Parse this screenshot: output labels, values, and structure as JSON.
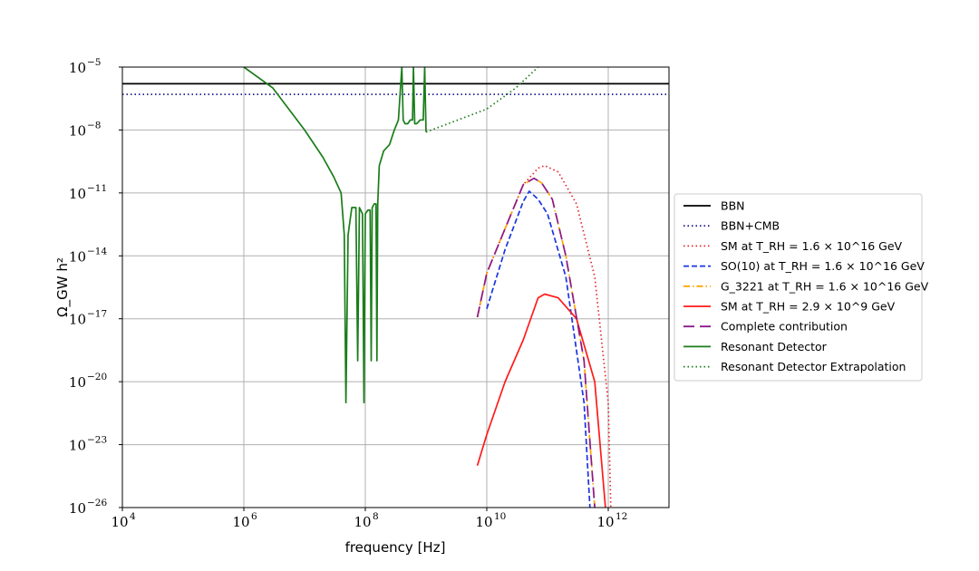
{
  "chart_data": {
    "type": "line",
    "xlabel": "frequency [Hz]",
    "ylabel": "Ω_GW h²",
    "x_scale": "log",
    "y_scale": "log",
    "xlim": [
      10000,
      10000000000000
    ],
    "ylim": [
      1e-26,
      1e-05
    ],
    "grid": true,
    "legend_position": "right-outside",
    "x_ticks": [
      {
        "base": "10",
        "exp": "4",
        "value": 10000
      },
      {
        "base": "10",
        "exp": "6",
        "value": 1000000
      },
      {
        "base": "10",
        "exp": "8",
        "value": 100000000
      },
      {
        "base": "10",
        "exp": "10",
        "value": 10000000000
      },
      {
        "base": "10",
        "exp": "12",
        "value": 1000000000000
      }
    ],
    "y_ticks": [
      {
        "base": "10",
        "exp": "−26",
        "value": 1e-26
      },
      {
        "base": "10",
        "exp": "−23",
        "value": 1e-23
      },
      {
        "base": "10",
        "exp": "−20",
        "value": 1e-20
      },
      {
        "base": "10",
        "exp": "−17",
        "value": 1e-17
      },
      {
        "base": "10",
        "exp": "−14",
        "value": 1e-14
      },
      {
        "base": "10",
        "exp": "−11",
        "value": 1e-11
      },
      {
        "base": "10",
        "exp": "−8",
        "value": 1e-08
      },
      {
        "base": "10",
        "exp": "−5",
        "value": 1e-05
      }
    ],
    "series": [
      {
        "name": "BBN",
        "color": "#000000",
        "style": "solid",
        "x": [
          10000,
          10000000000000
        ],
        "y": [
          1.6e-06,
          1.6e-06
        ]
      },
      {
        "name": "BBN+CMB",
        "color": "#1f1f8f",
        "style": "dotted",
        "x": [
          10000,
          10000000000000
        ],
        "y": [
          5e-07,
          5e-07
        ]
      },
      {
        "name": "SM at T_RH = 1.6 × 10^16 GeV",
        "color": "#e8262a",
        "style": "dotted",
        "x": [
          7000000000,
          10000000000,
          20000000000,
          40000000000,
          70000000000,
          90000000000,
          150000000000,
          300000000000,
          600000000000,
          1000000000000,
          1100000000000
        ],
        "y": [
          1.2e-17,
          1.5e-15,
          2e-13,
          2.5e-11,
          1.5e-10,
          2e-10,
          1e-10,
          3e-12,
          1e-15,
          1e-21,
          1e-26
        ]
      },
      {
        "name": "SO(10) at T_RH = 1.6 × 10^16 GeV",
        "color": "#1a35e0",
        "style": "dashed",
        "x": [
          10000000000,
          20000000000,
          40000000000,
          50000000000,
          70000000000,
          100000000000,
          200000000000,
          400000000000,
          500000000000
        ],
        "y": [
          3e-17,
          2e-14,
          4e-12,
          1.2e-11,
          5e-12,
          1e-12,
          1e-15,
          1e-21,
          1e-26
        ]
      },
      {
        "name": "G_3221 at T_RH = 1.6 × 10^16 GeV",
        "color": "#ffa500",
        "style": "dashdot",
        "x": [
          7000000000,
          10000000000,
          20000000000,
          40000000000,
          60000000000,
          80000000000,
          120000000000,
          200000000000,
          400000000000,
          600000000000
        ],
        "y": [
          1.2e-17,
          1.5e-15,
          2e-13,
          2.5e-11,
          5e-11,
          3e-11,
          5e-12,
          1e-14,
          1e-19,
          1e-26
        ]
      },
      {
        "name": "SM at T_RH = 2.9 × 10^9 GeV",
        "color": "#ff1a1a",
        "style": "solid",
        "x": [
          7000000000,
          10000000000,
          20000000000,
          40000000000,
          70000000000,
          90000000000,
          150000000000,
          300000000000,
          600000000000,
          900000000000
        ],
        "y": [
          1e-24,
          3e-23,
          1e-20,
          1e-18,
          1e-16,
          1.5e-16,
          1e-16,
          1e-17,
          1e-20,
          1e-26
        ]
      },
      {
        "name": "Complete contribution",
        "color": "#8b1a8b",
        "style": "longdash",
        "x": [
          7000000000,
          10000000000,
          20000000000,
          40000000000,
          60000000000,
          80000000000,
          120000000000,
          200000000000,
          400000000000,
          600000000000
        ],
        "y": [
          1.2e-17,
          1.5e-15,
          2e-13,
          2.5e-11,
          5e-11,
          3e-11,
          5e-12,
          1e-14,
          1e-19,
          1e-26
        ]
      },
      {
        "name": "Resonant Detector",
        "color": "#1a7d1a",
        "style": "solid",
        "x": [
          1000000,
          3000000,
          10000000,
          20000000,
          30000000,
          40000000,
          45000000,
          48000000,
          52000000,
          60000000,
          70000000,
          75000000,
          80000000,
          90000000,
          95000000,
          100000000,
          110000000,
          120000000,
          125000000,
          130000000,
          140000000,
          150000000,
          155000000,
          160000000,
          170000000,
          200000000,
          250000000,
          300000000,
          350000000,
          400000000,
          420000000,
          450000000,
          500000000,
          550000000,
          600000000,
          620000000,
          650000000,
          700000000,
          800000000,
          900000000,
          950000000,
          1000000000
        ],
        "y": [
          1e-05,
          1e-06,
          1e-08,
          5e-10,
          6e-11,
          1e-11,
          1e-13,
          1e-21,
          1e-13,
          2e-12,
          2e-12,
          1e-19,
          2e-12,
          1e-12,
          1e-21,
          1e-12,
          1.5e-12,
          1.5e-12,
          1e-19,
          2e-12,
          3e-12,
          3e-12,
          1e-19,
          3e-12,
          2e-10,
          1e-09,
          2e-09,
          1e-08,
          3e-08,
          1e-05,
          3e-08,
          2e-08,
          2e-08,
          3e-08,
          3e-08,
          1e-05,
          2e-08,
          2e-08,
          3e-08,
          3e-08,
          1e-05,
          8e-09
        ]
      },
      {
        "name": "Resonant Detector Extrapolation",
        "color": "#1a7d1a",
        "style": "dotted",
        "x": [
          1000000000,
          10000000000,
          30000000000,
          70000000000
        ],
        "y": [
          8e-09,
          1e-07,
          1e-06,
          1e-05
        ]
      }
    ]
  }
}
